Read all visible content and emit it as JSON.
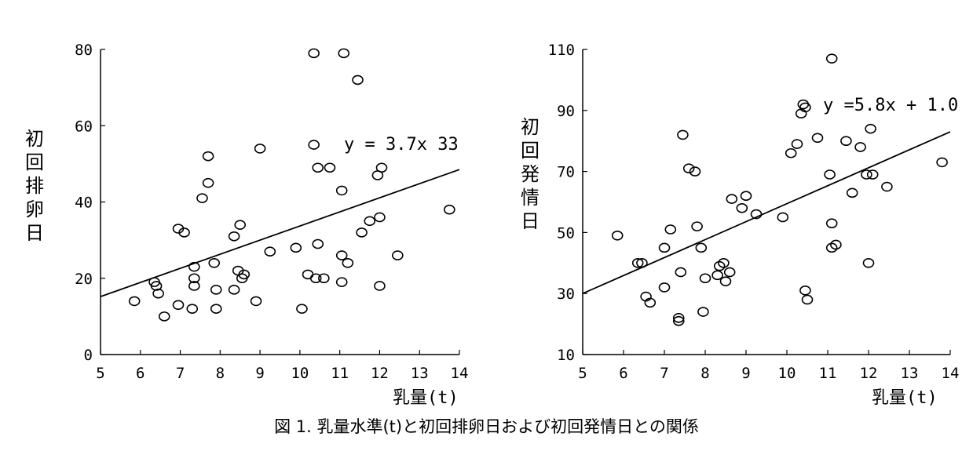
{
  "caption": "図 1. 乳量水準(t)と初回排卵日および初回発情日との関係",
  "chart_data": [
    {
      "type": "scatter",
      "title": "",
      "xlabel": "乳量(t)",
      "ylabel": "初回排卵日",
      "xlim": [
        5,
        14
      ],
      "ylim": [
        0,
        80
      ],
      "xticks": [
        "5",
        "6",
        "7",
        "8",
        "9",
        "10",
        "11",
        "12",
        "13",
        "14"
      ],
      "yticks": [
        "0",
        "20",
        "40",
        "60",
        "80"
      ],
      "grid": false,
      "trendline": {
        "label": "y = 3.7x  33",
        "x": [
          5,
          14
        ],
        "y": [
          15.2,
          48.5
        ]
      },
      "points": [
        [
          5.85,
          14
        ],
        [
          6.35,
          19
        ],
        [
          6.4,
          18
        ],
        [
          6.45,
          16
        ],
        [
          6.6,
          10
        ],
        [
          6.95,
          13
        ],
        [
          6.95,
          33
        ],
        [
          7.1,
          32
        ],
        [
          7.3,
          12
        ],
        [
          7.35,
          23
        ],
        [
          7.35,
          20
        ],
        [
          7.35,
          18
        ],
        [
          7.55,
          41
        ],
        [
          7.7,
          52
        ],
        [
          7.7,
          45
        ],
        [
          7.85,
          24
        ],
        [
          7.9,
          17
        ],
        [
          7.9,
          12
        ],
        [
          8.35,
          17
        ],
        [
          8.35,
          31
        ],
        [
          8.45,
          22
        ],
        [
          8.5,
          34
        ],
        [
          8.55,
          20
        ],
        [
          8.6,
          21
        ],
        [
          8.9,
          14
        ],
        [
          9.0,
          54
        ],
        [
          9.25,
          27
        ],
        [
          9.9,
          28
        ],
        [
          10.05,
          12
        ],
        [
          10.2,
          21
        ],
        [
          10.35,
          79
        ],
        [
          10.35,
          55
        ],
        [
          10.4,
          20
        ],
        [
          10.45,
          49
        ],
        [
          10.45,
          29
        ],
        [
          10.75,
          49
        ],
        [
          11.05,
          43
        ],
        [
          11.05,
          26
        ],
        [
          11.05,
          19
        ],
        [
          11.1,
          79
        ],
        [
          11.2,
          24
        ],
        [
          11.45,
          72
        ],
        [
          11.55,
          32
        ],
        [
          11.75,
          35
        ],
        [
          11.95,
          47
        ],
        [
          12.0,
          36
        ],
        [
          12.0,
          18
        ],
        [
          12.05,
          49
        ],
        [
          12.45,
          26
        ],
        [
          13.75,
          38
        ],
        [
          10.6,
          20
        ]
      ]
    },
    {
      "type": "scatter",
      "title": "",
      "xlabel": "乳量(t)",
      "ylabel": "初回発情日",
      "xlim": [
        5,
        14
      ],
      "ylim": [
        10,
        110
      ],
      "xticks": [
        "5",
        "6",
        "7",
        "8",
        "9",
        "10",
        "11",
        "12",
        "13",
        "14"
      ],
      "yticks": [
        "10",
        "30",
        "50",
        "70",
        "90",
        "110"
      ],
      "grid": false,
      "trendline": {
        "label": "y =5.8x + 1.0",
        "x": [
          5,
          14
        ],
        "y": [
          30,
          83
        ]
      },
      "points": [
        [
          5.85,
          49
        ],
        [
          6.35,
          40
        ],
        [
          6.45,
          40
        ],
        [
          6.55,
          29
        ],
        [
          6.65,
          27
        ],
        [
          7.0,
          32
        ],
        [
          7.0,
          45
        ],
        [
          7.15,
          51
        ],
        [
          7.35,
          22
        ],
        [
          7.35,
          21
        ],
        [
          7.4,
          37
        ],
        [
          7.45,
          82
        ],
        [
          7.6,
          71
        ],
        [
          7.75,
          70
        ],
        [
          7.8,
          52
        ],
        [
          7.9,
          45
        ],
        [
          7.95,
          24
        ],
        [
          8.0,
          35
        ],
        [
          8.3,
          36
        ],
        [
          8.35,
          39
        ],
        [
          8.45,
          40
        ],
        [
          8.5,
          34
        ],
        [
          8.6,
          37
        ],
        [
          8.65,
          61
        ],
        [
          8.9,
          58
        ],
        [
          9.0,
          62
        ],
        [
          9.25,
          56
        ],
        [
          9.9,
          55
        ],
        [
          10.1,
          76
        ],
        [
          10.25,
          79
        ],
        [
          10.35,
          89
        ],
        [
          10.4,
          92
        ],
        [
          10.45,
          91
        ],
        [
          10.45,
          31
        ],
        [
          10.5,
          28
        ],
        [
          10.75,
          81
        ],
        [
          11.05,
          69
        ],
        [
          11.1,
          53
        ],
        [
          11.1,
          45
        ],
        [
          11.1,
          107
        ],
        [
          11.2,
          46
        ],
        [
          11.45,
          80
        ],
        [
          11.6,
          63
        ],
        [
          11.8,
          78
        ],
        [
          11.95,
          69
        ],
        [
          12.0,
          40
        ],
        [
          12.05,
          84
        ],
        [
          12.1,
          69
        ],
        [
          12.45,
          65
        ],
        [
          13.8,
          73
        ]
      ]
    }
  ]
}
